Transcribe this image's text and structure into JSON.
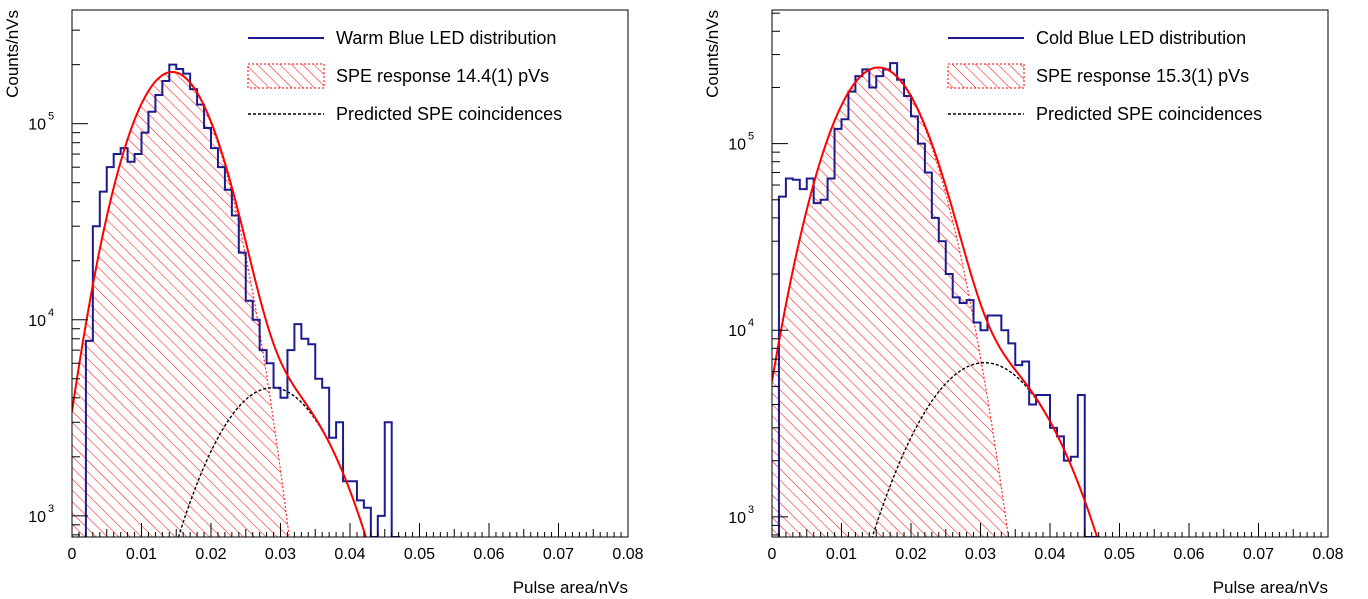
{
  "chart_data": [
    {
      "type": "histogram",
      "xlabel": "Pulse area/nVs",
      "ylabel": "Counts/nVs",
      "xlim": [
        0,
        0.08
      ],
      "ylim": [
        780,
        380000
      ],
      "y_scale": "log",
      "x_tick_labels": [
        "0",
        "0.01",
        "0.02",
        "0.03",
        "0.04",
        "0.05",
        "0.06",
        "0.07",
        "0.08"
      ],
      "y_tick_labels": [
        {
          "base": "10",
          "exp": "3",
          "value": 1000
        },
        {
          "base": "10",
          "exp": "4",
          "value": 10000
        },
        {
          "base": "10",
          "exp": "5",
          "value": 100000
        }
      ],
      "legend_position": "top-right",
      "legend": [
        {
          "label": "Warm Blue LED distribution",
          "style": "line",
          "color": "#1b1b8f"
        },
        {
          "label": "SPE response 14.4(1) pVs",
          "style": "hatch",
          "color": "#ff2a2a"
        },
        {
          "label": "Predicted SPE coincidences",
          "style": "dotted",
          "color": "#000000"
        }
      ],
      "series": [
        {
          "name": "Warm Blue LED distribution",
          "kind": "step",
          "color": "#1b1b8f",
          "x": [
            0.002,
            0.003,
            0.004,
            0.005,
            0.006,
            0.007,
            0.008,
            0.009,
            0.01,
            0.011,
            0.012,
            0.013,
            0.014,
            0.015,
            0.016,
            0.017,
            0.018,
            0.019,
            0.02,
            0.021,
            0.022,
            0.023,
            0.024,
            0.025,
            0.026,
            0.027,
            0.028,
            0.029,
            0.03,
            0.031,
            0.032,
            0.033,
            0.034,
            0.035,
            0.036,
            0.037,
            0.038,
            0.039,
            0.04,
            0.041,
            0.042,
            0.043,
            0.044,
            0.045,
            0.046
          ],
          "y": [
            7800,
            30000,
            45000,
            60000,
            70000,
            75000,
            64000,
            70000,
            90000,
            115000,
            140000,
            165000,
            200000,
            190000,
            180000,
            150000,
            125000,
            95000,
            75000,
            60000,
            46000,
            34000,
            22000,
            12500,
            10000,
            7000,
            6000,
            4500,
            4000,
            7000,
            9500,
            8000,
            7500,
            5000,
            4500,
            2500,
            3000,
            1500,
            1500,
            1200,
            1100,
            780,
            1000,
            3000,
            780
          ]
        },
        {
          "name": "SPE response 14.4(1) pVs",
          "kind": "gaussian-fill",
          "color": "#ff2a2a",
          "amplitude": 183000,
          "mean": 0.0144,
          "sigma": 0.0051
        },
        {
          "name": "Predicted SPE coincidences",
          "kind": "gaussian-dotted",
          "color": "#000000",
          "amplitude": 4500,
          "mean": 0.0288,
          "sigma": 0.0072
        },
        {
          "name": "fit",
          "kind": "fit-line",
          "color": "#ff0000"
        }
      ]
    },
    {
      "type": "histogram",
      "xlabel": "Pulse area/nVs",
      "ylabel": "Counts/nVs",
      "xlim": [
        0,
        0.08
      ],
      "ylim": [
        780,
        520000
      ],
      "y_scale": "log",
      "x_tick_labels": [
        "0",
        "0.01",
        "0.02",
        "0.03",
        "0.04",
        "0.05",
        "0.06",
        "0.07",
        "0.08"
      ],
      "y_tick_labels": [
        {
          "base": "10",
          "exp": "3",
          "value": 1000
        },
        {
          "base": "10",
          "exp": "4",
          "value": 10000
        },
        {
          "base": "10",
          "exp": "5",
          "value": 100000
        }
      ],
      "legend_position": "top-right",
      "legend": [
        {
          "label": "Cold Blue LED distribution",
          "style": "line",
          "color": "#1b1b8f"
        },
        {
          "label": "SPE response 15.3(1) pVs",
          "style": "hatch",
          "color": "#ff2a2a"
        },
        {
          "label": "Predicted SPE coincidences",
          "style": "dotted",
          "color": "#000000"
        }
      ],
      "series": [
        {
          "name": "Cold Blue LED distribution",
          "kind": "step",
          "color": "#1b1b8f",
          "x": [
            0.001,
            0.002,
            0.003,
            0.004,
            0.005,
            0.006,
            0.007,
            0.008,
            0.009,
            0.01,
            0.011,
            0.012,
            0.013,
            0.014,
            0.015,
            0.016,
            0.017,
            0.018,
            0.019,
            0.02,
            0.021,
            0.022,
            0.023,
            0.024,
            0.025,
            0.026,
            0.027,
            0.028,
            0.029,
            0.03,
            0.031,
            0.032,
            0.033,
            0.034,
            0.035,
            0.036,
            0.037,
            0.038,
            0.039,
            0.04,
            0.041,
            0.042,
            0.043,
            0.044,
            0.045,
            0.046
          ],
          "y": [
            52000,
            65000,
            64000,
            57000,
            65000,
            48000,
            50000,
            65000,
            120000,
            135000,
            190000,
            230000,
            250000,
            200000,
            230000,
            250000,
            270000,
            220000,
            180000,
            140000,
            100000,
            70000,
            40000,
            30000,
            20000,
            15000,
            14000,
            14500,
            11000,
            10000,
            12000,
            12000,
            10000,
            8500,
            6500,
            6800,
            4000,
            4500,
            4500,
            3000,
            2700,
            2000,
            2100,
            4500,
            780,
            780
          ]
        },
        {
          "name": "SPE response 15.3(1) pVs",
          "kind": "gaussian-fill",
          "color": "#ff2a2a",
          "amplitude": 255000,
          "mean": 0.0153,
          "sigma": 0.0055
        },
        {
          "name": "Predicted SPE coincidences",
          "kind": "gaussian-dotted",
          "color": "#000000",
          "amplitude": 6700,
          "mean": 0.0306,
          "sigma": 0.0078
        },
        {
          "name": "fit",
          "kind": "fit-line",
          "color": "#ff0000"
        }
      ]
    }
  ]
}
